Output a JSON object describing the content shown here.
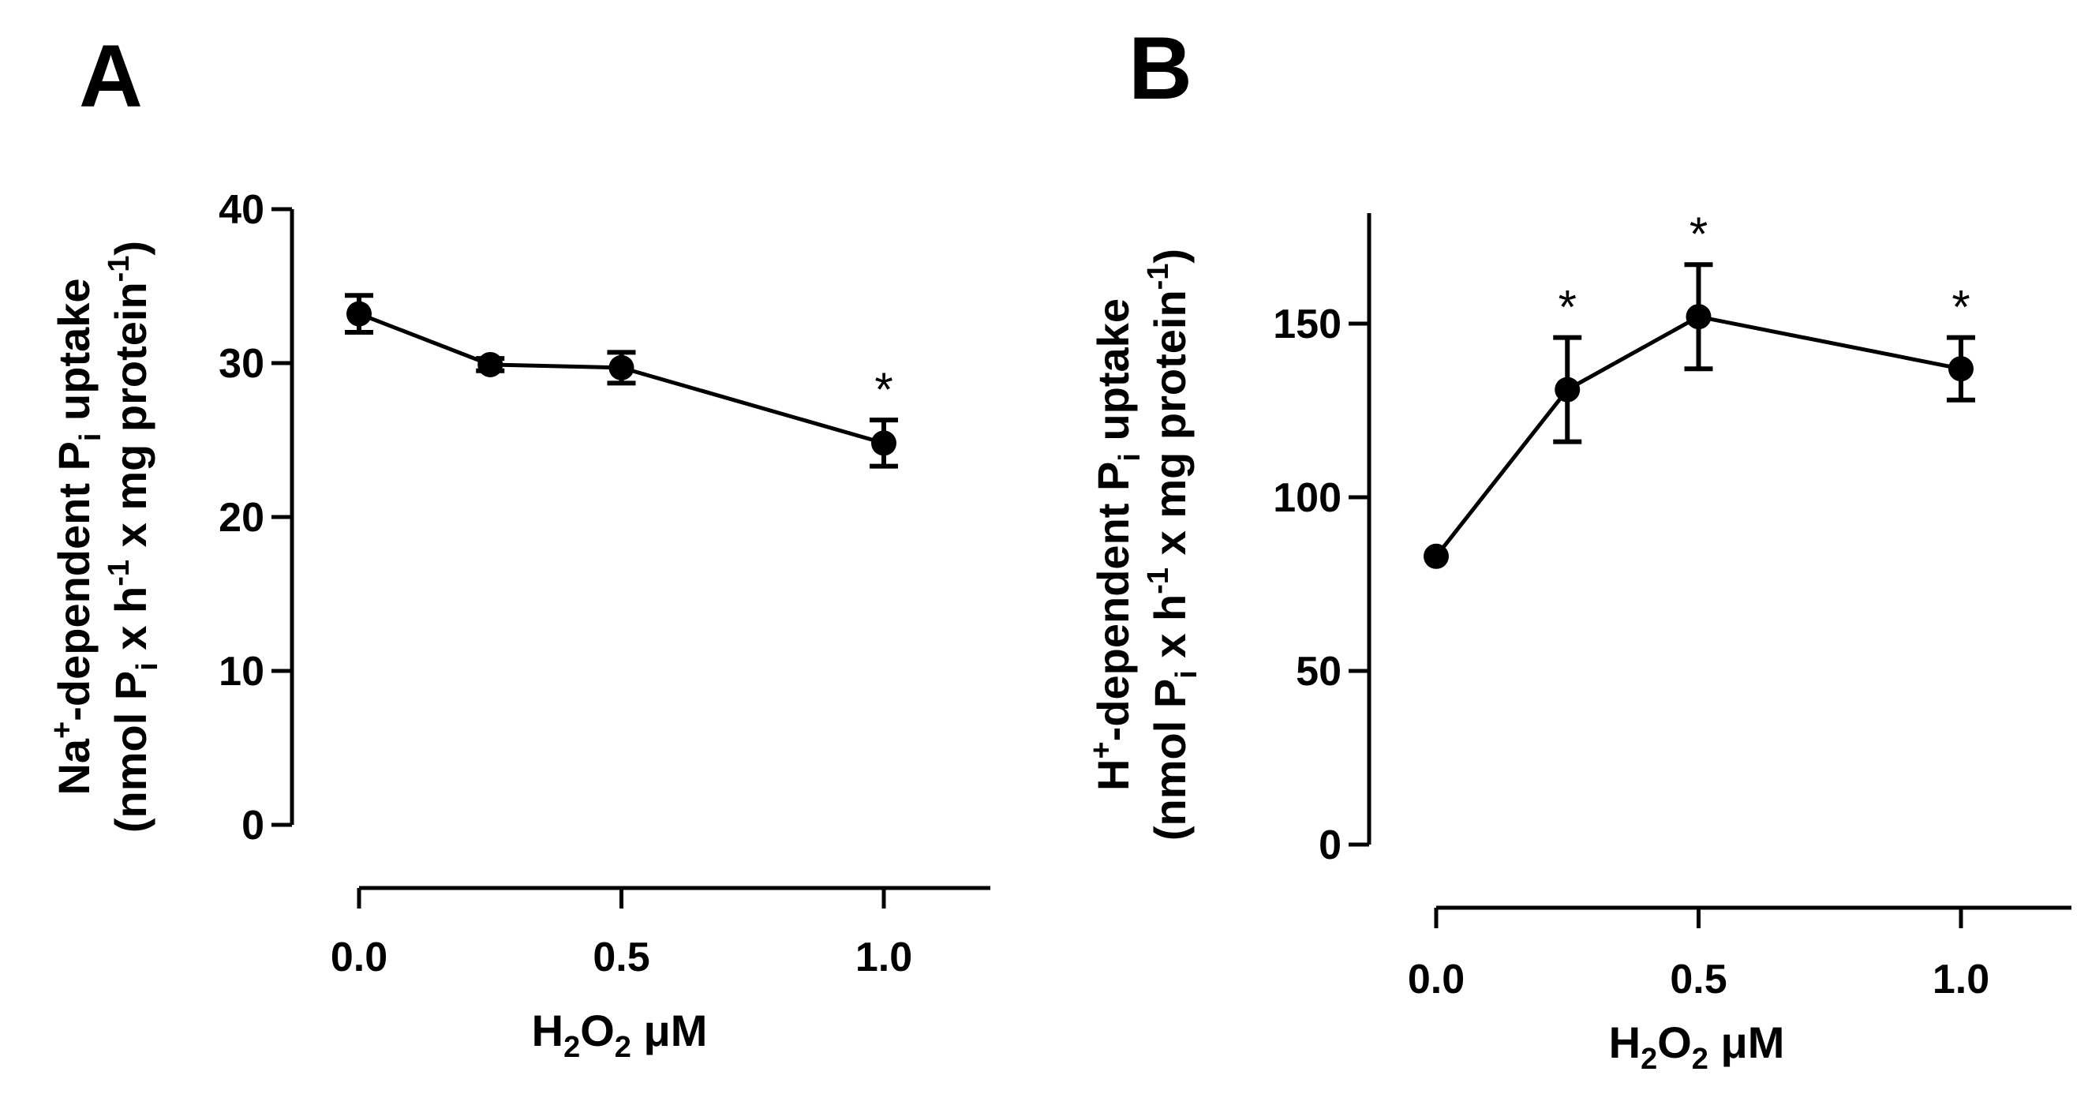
{
  "colors": {
    "ink": "#000000",
    "background": "#ffffff"
  },
  "chart_data": [
    {
      "type": "line",
      "panel_label": "A",
      "x": [
        0.0,
        0.25,
        0.5,
        1.0
      ],
      "series": [
        {
          "values": [
            33.2,
            29.9,
            29.7,
            24.8
          ],
          "errors": [
            1.2,
            0.4,
            1.0,
            1.5
          ]
        }
      ],
      "significance": [
        "",
        "",
        "",
        "*"
      ],
      "xlabel": {
        "base": "H",
        "sub1": "2",
        "mid": "O",
        "sub2": "2",
        "unit": " μM"
      },
      "ylabel": {
        "line1": {
          "a": "Na",
          "sup": "+",
          "b": "-dependent P",
          "sub": "i",
          "c": " uptake"
        },
        "line2": {
          "a": "(nmol P",
          "sub": "i",
          "b": " x h",
          "sup1": "-1",
          "c": " x mg protein",
          "sup2": "-1",
          "d": ")"
        }
      },
      "xticks": [
        "0.0",
        "0.5",
        "1.0"
      ],
      "xtick_values": [
        0.0,
        0.5,
        1.0
      ],
      "yticks": [
        "0",
        "10",
        "20",
        "30",
        "40"
      ],
      "ytick_values": [
        0,
        10,
        20,
        30,
        40
      ],
      "xlim": [
        0.0,
        1.2
      ],
      "ylim": [
        0,
        40
      ],
      "grid": false
    },
    {
      "type": "line",
      "panel_label": "B",
      "x": [
        0.0,
        0.25,
        0.5,
        1.0
      ],
      "series": [
        {
          "values": [
            83,
            131,
            152,
            137
          ],
          "errors": [
            0,
            15,
            15,
            9
          ]
        }
      ],
      "significance": [
        "",
        "*",
        "*",
        "*"
      ],
      "xlabel": {
        "base": "H",
        "sub1": "2",
        "mid": "O",
        "sub2": "2",
        "unit": " μM"
      },
      "ylabel": {
        "line1": {
          "a": "H",
          "sup": "+",
          "b": "-dependent P",
          "sub": "i",
          "c": " uptake"
        },
        "line2": {
          "a": "(nmol P",
          "sub": "i",
          "b": " x h",
          "sup1": "-1",
          "c": " x mg protein",
          "sup2": "-1",
          "d": ")"
        }
      },
      "xticks": [
        "0.0",
        "0.5",
        "1.0"
      ],
      "xtick_values": [
        0.0,
        0.5,
        1.0
      ],
      "yticks": [
        "0",
        "50",
        "100",
        "150"
      ],
      "ytick_values": [
        0,
        50,
        100,
        150
      ],
      "xlim": [
        0.0,
        1.2
      ],
      "ylim": [
        0,
        180
      ],
      "grid": false
    }
  ]
}
